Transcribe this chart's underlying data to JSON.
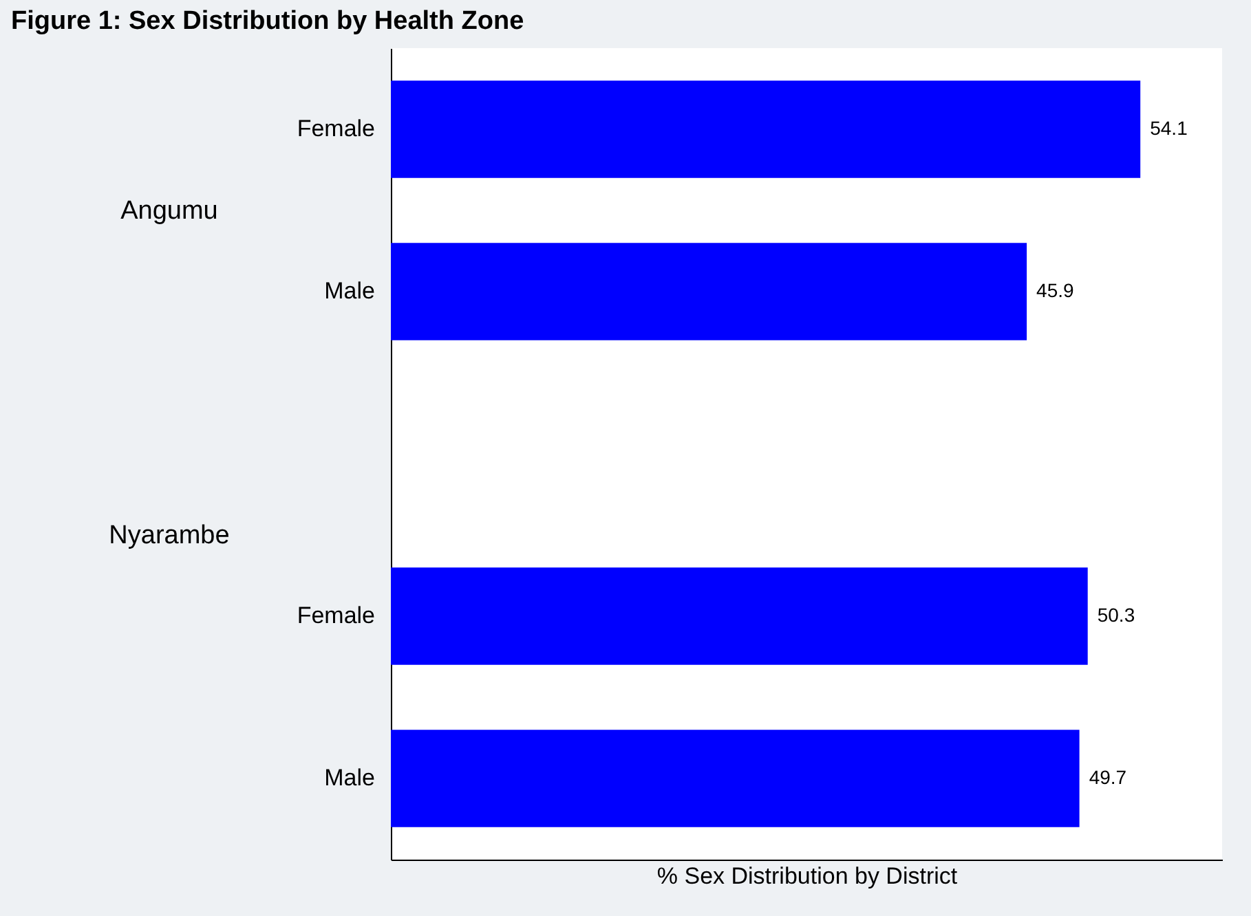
{
  "chart_data": {
    "type": "bar",
    "orientation": "horizontal",
    "title": "Figure 1: Sex Distribution by Health Zone",
    "xlabel": "% Sex Distribution by District",
    "categories": [
      "Female",
      "Male",
      null,
      "Female",
      "Male"
    ],
    "values": [
      54.1,
      45.9,
      null,
      50.3,
      49.7
    ],
    "color": "#0000ff",
    "annotations": [
      "Angumu",
      "Nyarambe"
    ],
    "data_labels": true,
    "grid": false,
    "tick_labels": "y"
  }
}
